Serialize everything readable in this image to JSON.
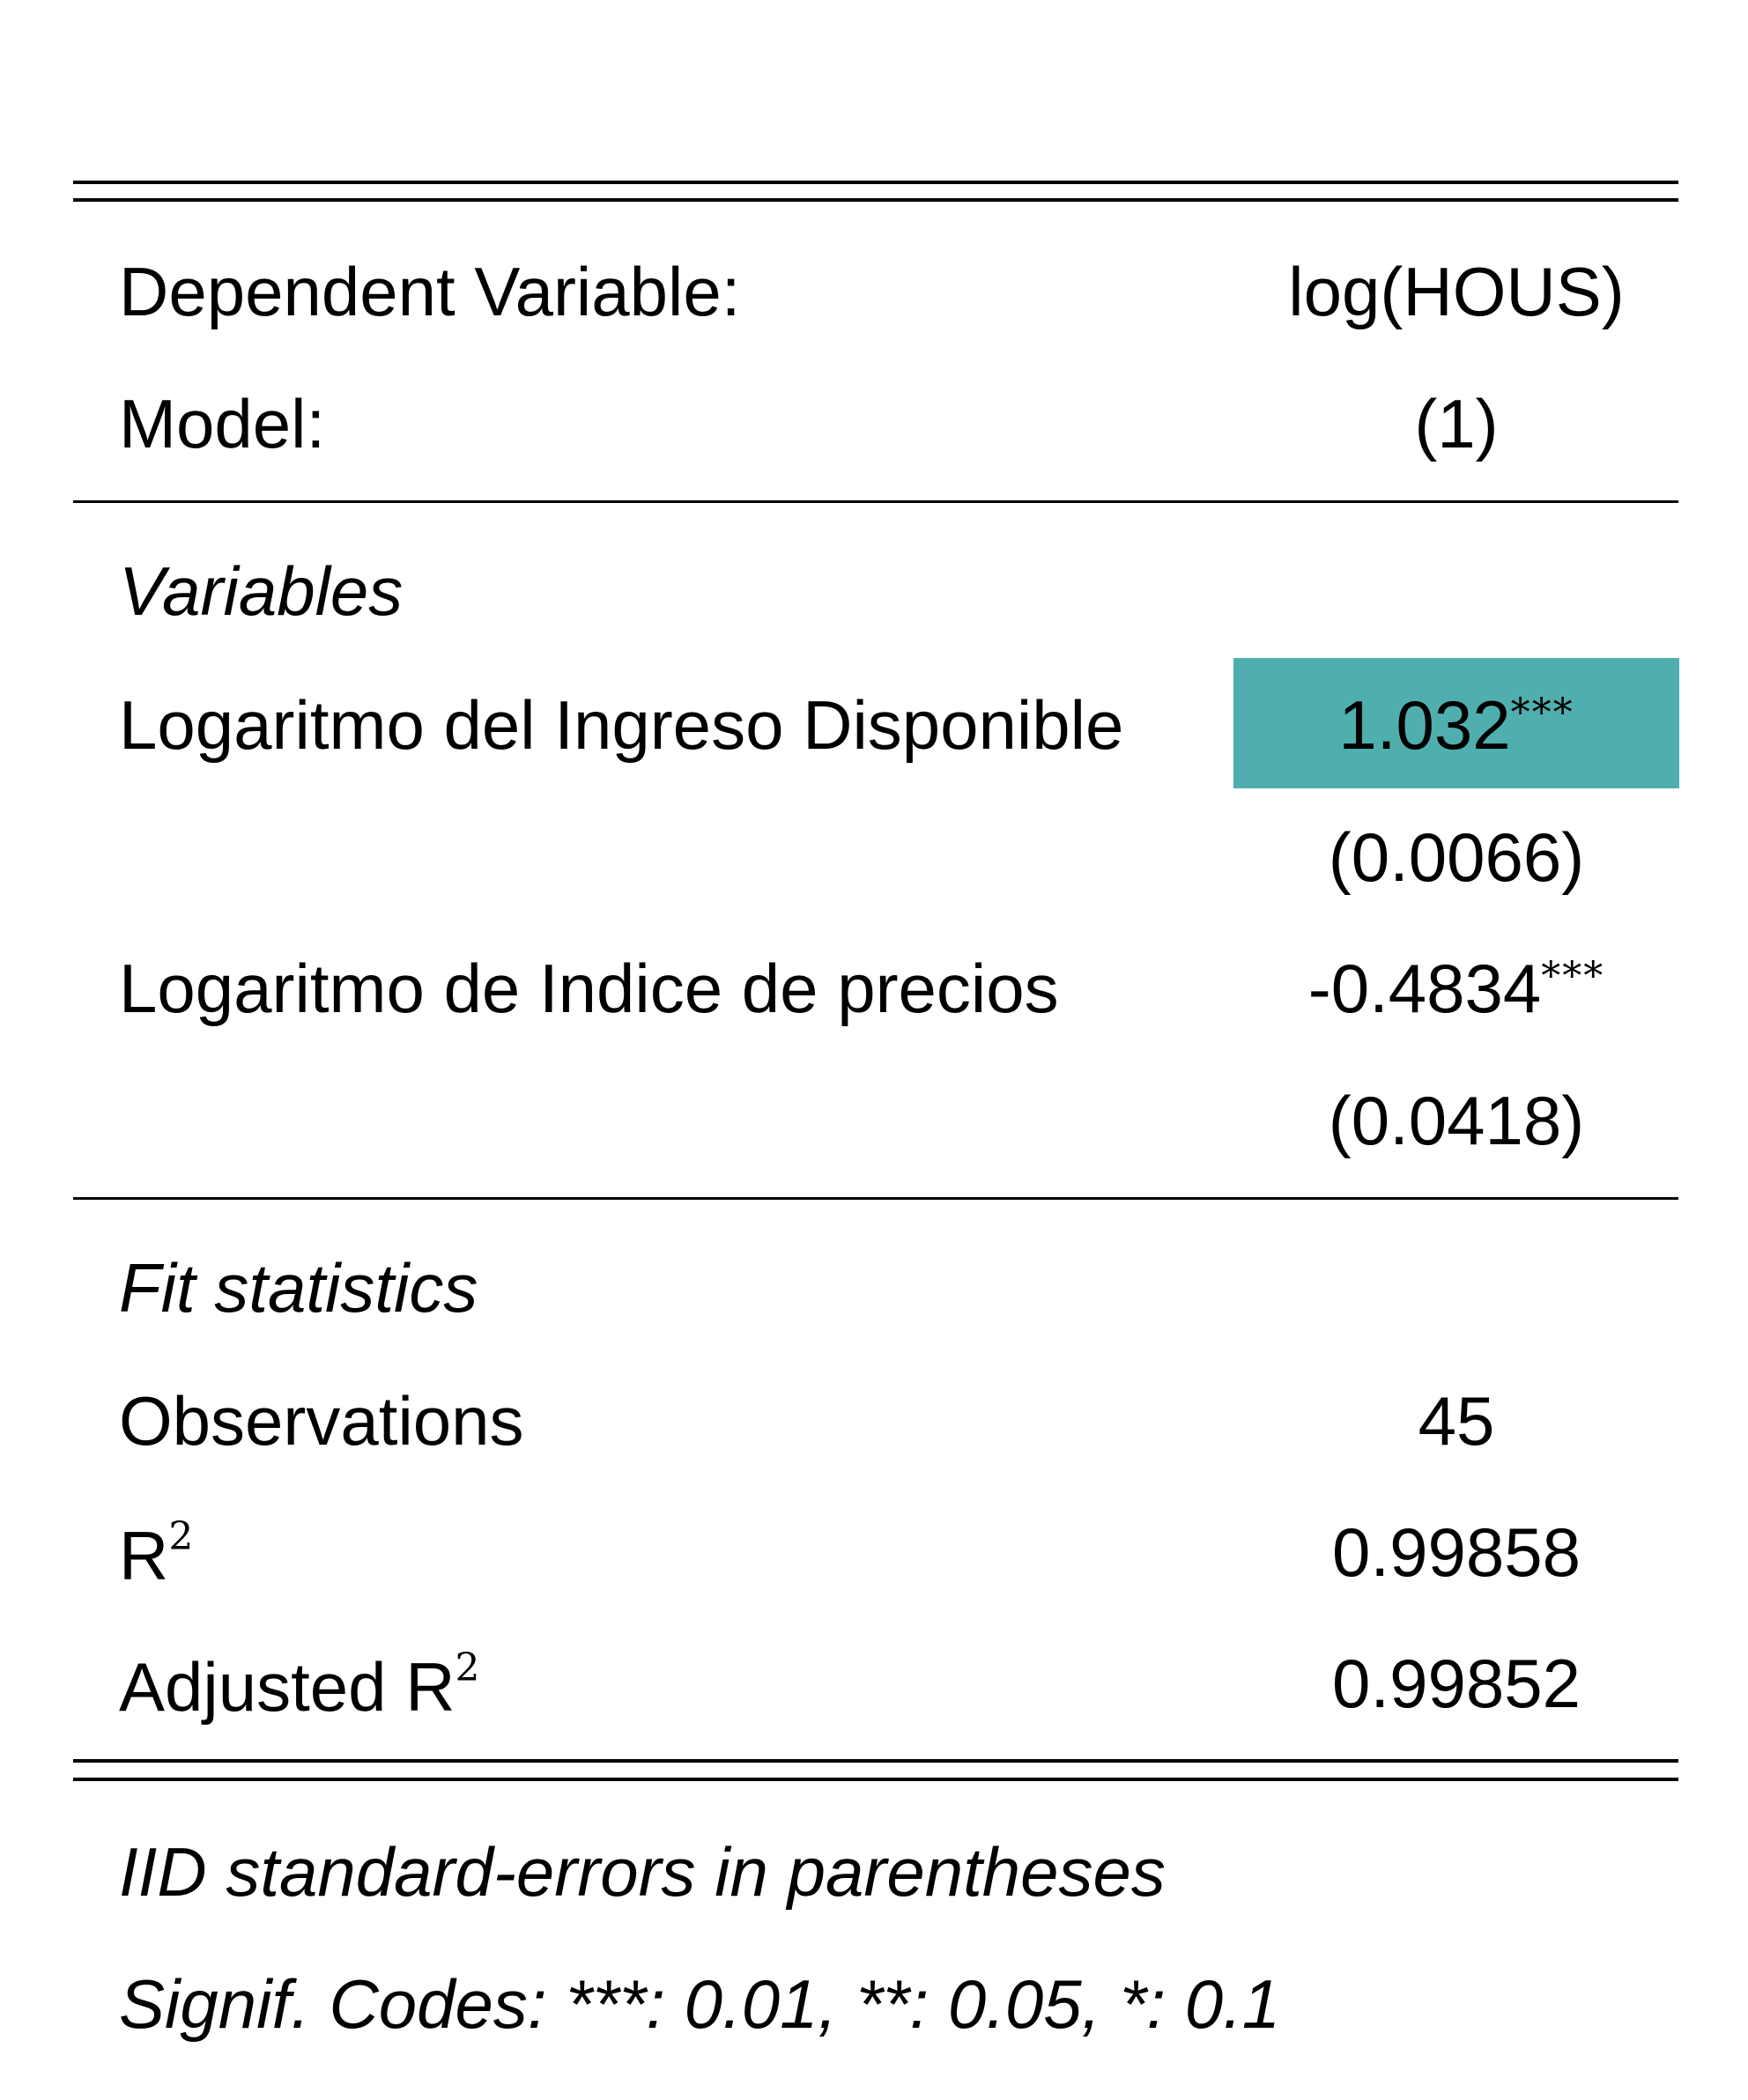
{
  "table": {
    "header": {
      "dep_var_label": "Dependent Variable:",
      "dep_var_value": "log(HOUS)",
      "model_label": "Model:",
      "model_value": "(1)"
    },
    "variables_section": {
      "title": "Variables",
      "rows": [
        {
          "label": "Logaritmo del Ingreso Disponible",
          "coef": "1.032",
          "stars": "***",
          "se": "(0.0066)",
          "highlighted": true
        },
        {
          "label": "Logaritmo de Indice de precios",
          "coef": "-0.4834",
          "stars": "***",
          "se": "(0.0418)",
          "highlighted": false
        }
      ]
    },
    "fit_section": {
      "title": "Fit statistics",
      "observations_label": "Observations",
      "observations_value": "45",
      "r2_label": "R",
      "r2_sup": "2",
      "r2_value": "0.99858",
      "adj_r2_label": "Adjusted R",
      "adj_r2_sup": "2",
      "adj_r2_value": "0.99852"
    },
    "notes": {
      "line1": "IID standard-errors in parentheses",
      "line2": "Signif. Codes: ***: 0.01, **: 0.05, *: 0.1"
    }
  },
  "colors": {
    "highlight": "#4fafae",
    "rule": "#000000"
  }
}
